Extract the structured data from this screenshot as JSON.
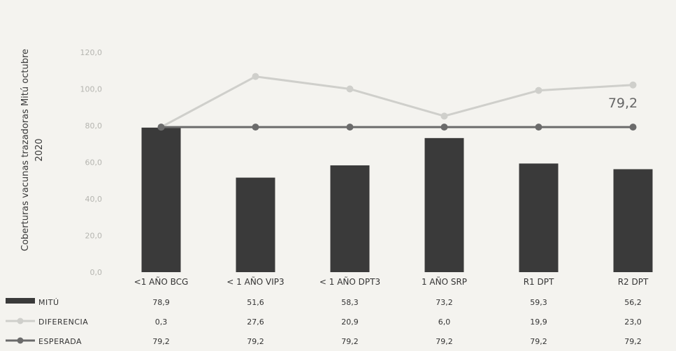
{
  "chart_data": {
    "type": "bar",
    "ylabel": [
      "Coberturas vacunas trazadoras Mitú octubre",
      "2020"
    ],
    "yticks": [
      "0,0",
      "20,0",
      "40,0",
      "60,0",
      "80,0",
      "100,0",
      "120,0"
    ],
    "ylim": [
      0,
      120
    ],
    "categories": [
      "<1 AÑO BCG",
      "< 1 AÑO VIP3",
      "< 1 AÑO DPT3",
      "1 AÑO SRP",
      "R1 DPT",
      "R2 DPT"
    ],
    "series": [
      {
        "name": "MITÚ",
        "kind": "bar",
        "color": "#3a3a3a",
        "values": [
          78.9,
          51.6,
          58.3,
          73.2,
          59.3,
          56.2
        ],
        "labels": [
          "78,9",
          "51,6",
          "58,3",
          "73,2",
          "59,3",
          "56,2"
        ]
      },
      {
        "name": "DIFERENCIA",
        "kind": "line",
        "color": "#cfcfcb",
        "values": [
          79.2,
          106.8,
          100.0,
          85.2,
          99.2,
          102.2
        ],
        "labels": [
          "0,3",
          "27,6",
          "20,9",
          "6,0",
          "19,9",
          "23,0"
        ]
      },
      {
        "name": "ESPERADA",
        "kind": "line",
        "color": "#6b6b6b",
        "values": [
          79.2,
          79.2,
          79.2,
          79.2,
          79.2,
          79.2
        ],
        "labels": [
          "79,2",
          "79,2",
          "79,2",
          "79,2",
          "79,2",
          "79,2"
        ]
      }
    ],
    "annotation": "79,2",
    "grid": false
  }
}
